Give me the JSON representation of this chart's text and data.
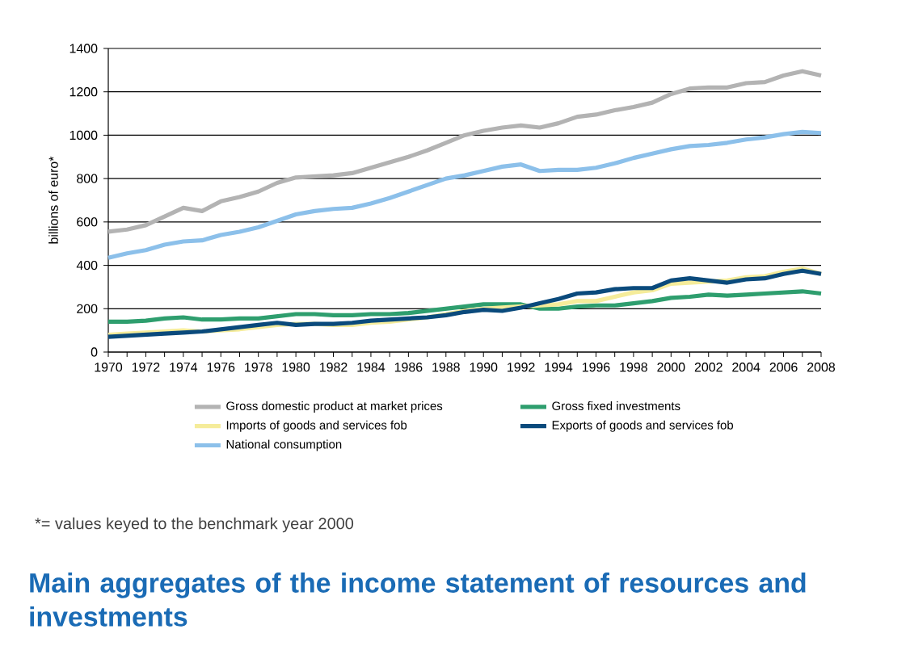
{
  "chart_data": {
    "type": "line",
    "title": "Main aggregates of the  income statement of resources and investments",
    "ylabel": "billions of euro*",
    "annotations": [
      "*= values keyed to the benchmark year 2000"
    ],
    "x": [
      1970,
      1971,
      1972,
      1973,
      1974,
      1975,
      1976,
      1977,
      1978,
      1979,
      1980,
      1981,
      1982,
      1983,
      1984,
      1985,
      1986,
      1987,
      1988,
      1989,
      1990,
      1991,
      1992,
      1993,
      1994,
      1995,
      1996,
      1997,
      1998,
      1999,
      2000,
      2001,
      2002,
      2003,
      2004,
      2005,
      2006,
      2007,
      2008
    ],
    "series": [
      {
        "name": "Gross domestic product at market prices",
        "color": "#b3b3b3",
        "values": [
          555,
          565,
          585,
          625,
          665,
          650,
          695,
          715,
          740,
          780,
          805,
          810,
          815,
          825,
          850,
          875,
          900,
          930,
          965,
          1000,
          1020,
          1035,
          1045,
          1035,
          1055,
          1085,
          1095,
          1115,
          1130,
          1150,
          1190,
          1215,
          1220,
          1220,
          1240,
          1245,
          1275,
          1295,
          1275
        ]
      },
      {
        "name": "Gross fixed investments",
        "color": "#2e9e6e",
        "values": [
          140,
          140,
          145,
          155,
          160,
          150,
          150,
          155,
          155,
          165,
          175,
          175,
          170,
          170,
          175,
          175,
          180,
          190,
          200,
          210,
          220,
          220,
          220,
          200,
          200,
          210,
          215,
          215,
          225,
          235,
          250,
          255,
          265,
          260,
          265,
          270,
          275,
          280,
          270
        ]
      },
      {
        "name": "Imports of goods and services fob",
        "color": "#f5ec9a",
        "values": [
          80,
          85,
          90,
          95,
          100,
          95,
          100,
          105,
          115,
          125,
          130,
          130,
          125,
          125,
          135,
          140,
          150,
          160,
          175,
          190,
          200,
          205,
          210,
          215,
          220,
          235,
          235,
          255,
          275,
          285,
          315,
          320,
          325,
          330,
          345,
          350,
          370,
          385,
          360
        ]
      },
      {
        "name": "Exports of goods and services fob",
        "color": "#0a4a7c",
        "values": [
          70,
          75,
          80,
          85,
          90,
          95,
          105,
          115,
          125,
          135,
          125,
          130,
          130,
          135,
          145,
          150,
          155,
          160,
          170,
          185,
          195,
          190,
          205,
          225,
          245,
          270,
          275,
          290,
          295,
          295,
          330,
          340,
          330,
          320,
          335,
          340,
          360,
          375,
          360
        ]
      },
      {
        "name": "National consumption",
        "color": "#8cc0ea",
        "values": [
          435,
          455,
          470,
          495,
          510,
          515,
          540,
          555,
          575,
          605,
          635,
          650,
          660,
          665,
          685,
          710,
          740,
          770,
          800,
          815,
          835,
          855,
          865,
          835,
          840,
          840,
          850,
          870,
          895,
          915,
          935,
          950,
          955,
          965,
          980,
          990,
          1005,
          1015,
          1010
        ]
      }
    ],
    "xlim": [
      1970,
      2008
    ],
    "xticks": [
      1970,
      {
        "value": 1971,
        "label": null
      },
      1972,
      {
        "value": 1973,
        "label": null
      },
      1974,
      {
        "value": 1975,
        "label": null
      },
      1976,
      {
        "value": 1977,
        "label": null
      },
      1978,
      {
        "value": 1979,
        "label": null
      },
      1980,
      {
        "value": 1981,
        "label": null
      },
      1982,
      {
        "value": 1983,
        "label": null
      },
      1984,
      {
        "value": 1985,
        "label": null
      },
      1986,
      {
        "value": 1987,
        "label": null
      },
      1988,
      {
        "value": 1989,
        "label": null
      },
      1990,
      {
        "value": 1991,
        "label": null
      },
      1992,
      {
        "value": 1993,
        "label": null
      },
      1994,
      {
        "value": 1995,
        "label": null
      },
      1996,
      {
        "value": 1997,
        "label": null
      },
      1998,
      {
        "value": 1999,
        "label": null
      },
      2000,
      {
        "value": 2001,
        "label": null
      },
      2002,
      {
        "value": 2003,
        "label": null
      },
      2004,
      {
        "value": 2005,
        "label": null
      },
      2006,
      {
        "value": 2007,
        "label": null
      },
      2008
    ],
    "ylim": [
      0,
      1400
    ],
    "yticks": [
      0,
      200,
      400,
      600,
      800,
      1000,
      1200,
      1400
    ],
    "grid": "y",
    "legend": "bottom"
  }
}
